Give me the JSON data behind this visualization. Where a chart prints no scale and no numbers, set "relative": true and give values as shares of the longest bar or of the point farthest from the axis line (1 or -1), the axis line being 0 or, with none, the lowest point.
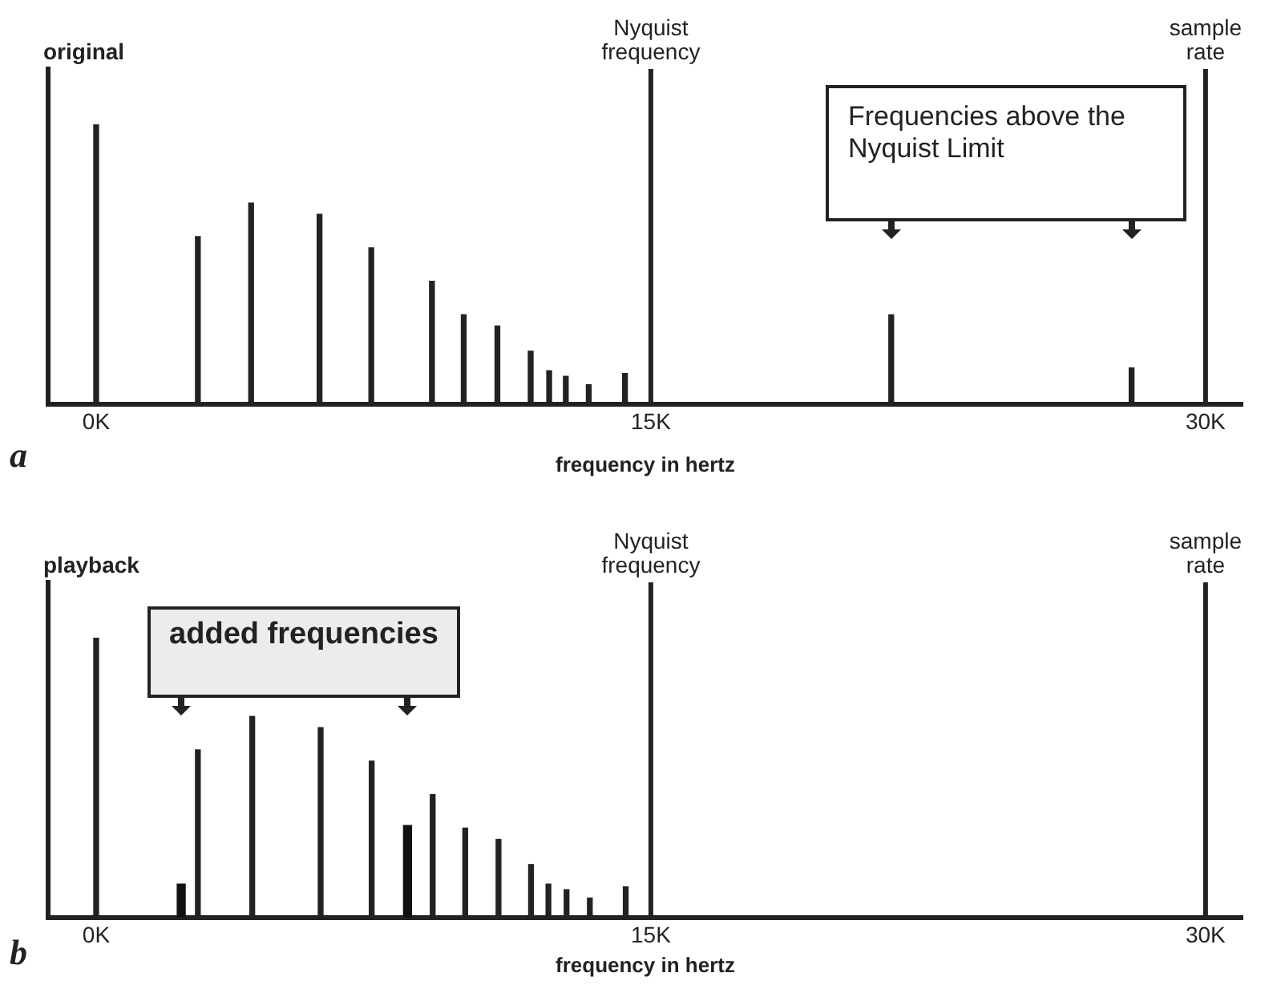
{
  "chart_data": [
    {
      "type": "bar",
      "title": "original",
      "xlabel": "frequency in hertz",
      "relative": true,
      "legend": false,
      "grid": false,
      "xlim": [
        -1300,
        31000
      ],
      "xticks": [
        {
          "value": 0,
          "label": "0K"
        },
        {
          "value": 15000,
          "label": "15K"
        },
        {
          "value": 30000,
          "label": "30K"
        }
      ],
      "series": [
        {
          "color": "#222222",
          "x": [
            0,
            2750,
            4190,
            6040,
            7440,
            9080,
            9940,
            10850,
            11750,
            12250,
            12700,
            13320,
            14300,
            21500,
            28000
          ],
          "values": [
            1,
            0.6,
            0.72,
            0.68,
            0.56,
            0.44,
            0.32,
            0.28,
            0.19,
            0.12,
            0.1,
            0.07,
            0.11,
            0.32,
            0.13
          ]
        }
      ],
      "ref_lines": [
        {
          "axis": "x",
          "value": 15000,
          "label": "Nyquist frequency"
        },
        {
          "axis": "x",
          "value": 30000,
          "label": "sample rate"
        }
      ],
      "annotations": [
        "a",
        "Frequencies above the Nyquist Limit"
      ]
    },
    {
      "type": "bar",
      "title": "playback",
      "xlabel": "frequency in hertz",
      "relative": true,
      "legend": false,
      "grid": false,
      "xlim": [
        -1300,
        31000
      ],
      "xticks": [
        {
          "value": 0,
          "label": "0K"
        },
        {
          "value": 15000,
          "label": "15K"
        },
        {
          "value": 30000,
          "label": "30K"
        }
      ],
      "series": [
        {
          "color": "#222222",
          "x": [
            0,
            2750,
            4220,
            6070,
            7450,
            9100,
            9980,
            10880,
            11760,
            12230,
            12720,
            13350,
            14320
          ],
          "values": [
            1,
            0.6,
            0.72,
            0.68,
            0.56,
            0.44,
            0.32,
            0.28,
            0.19,
            0.12,
            0.1,
            0.07,
            0.11
          ]
        },
        {
          "color": "#111111",
          "x": [
            2300,
            8420
          ],
          "values": [
            0.12,
            0.33
          ]
        }
      ],
      "ref_lines": [
        {
          "axis": "x",
          "value": 15000,
          "label": "Nyquist frequency"
        },
        {
          "axis": "x",
          "value": 30000,
          "label": "sample rate"
        }
      ],
      "annotations": [
        "b",
        "added frequencies"
      ]
    }
  ]
}
